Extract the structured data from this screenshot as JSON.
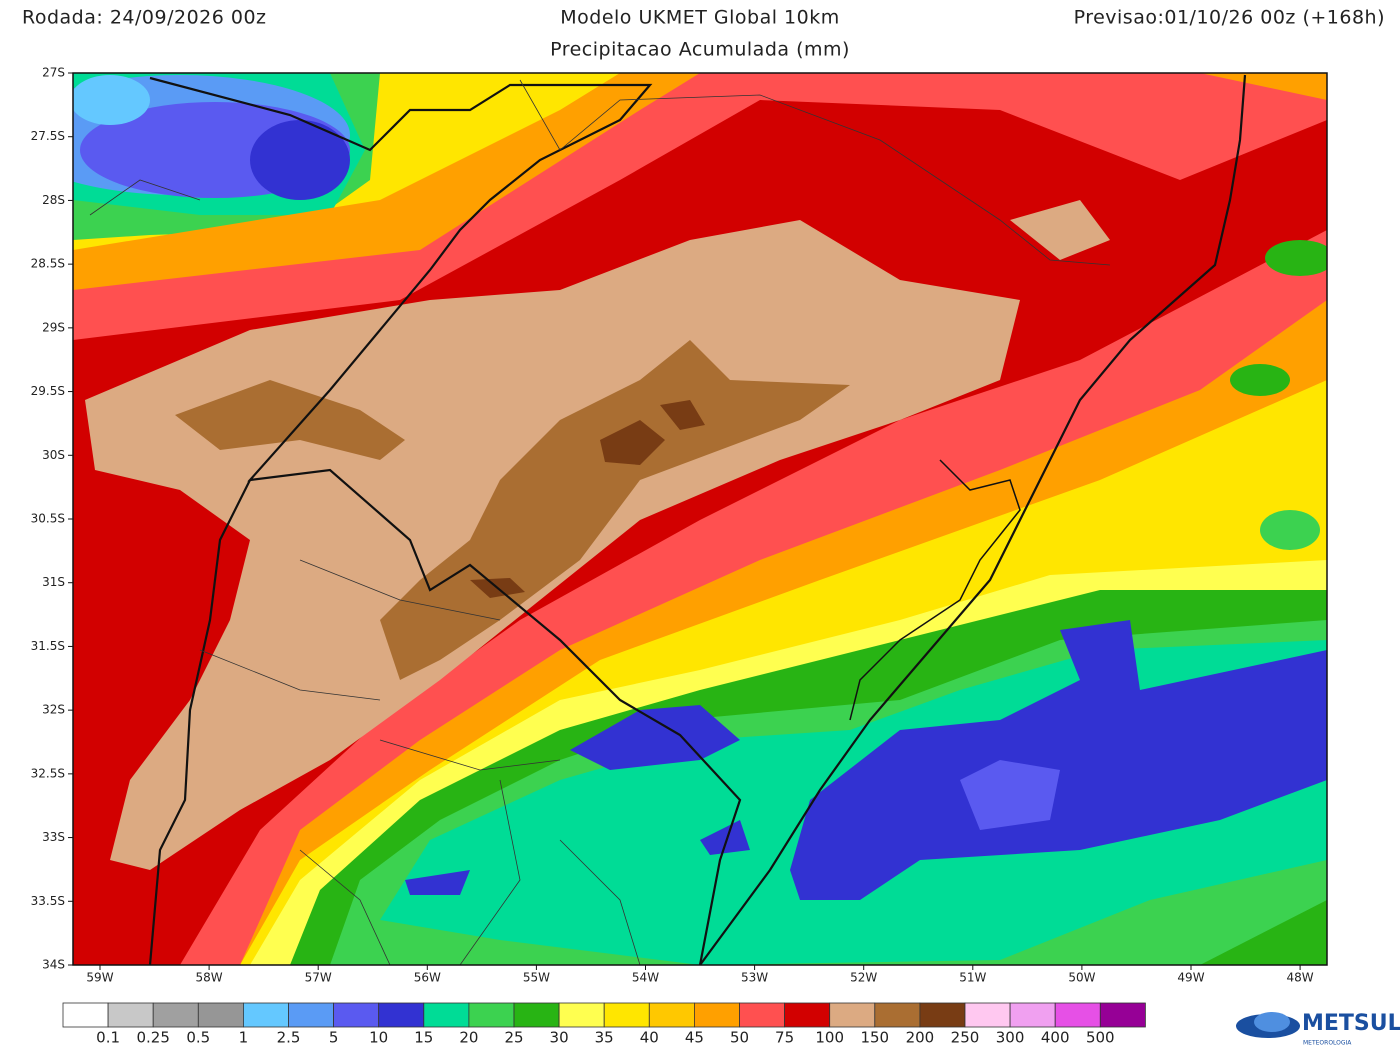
{
  "header": {
    "run": "Rodada: 24/09/2026 00z",
    "model": "Modelo UKMET Global 10km",
    "forecast": "Previsao:01/10/26 00z (+168h)",
    "subtitle": "Precipitacao Acumulada (mm)"
  },
  "map": {
    "lat_ticks": [
      "27S",
      "27.5S",
      "28S",
      "28.5S",
      "29S",
      "29.5S",
      "30S",
      "30.5S",
      "31S",
      "31.5S",
      "32S",
      "32.5S",
      "33S",
      "33.5S",
      "34S"
    ],
    "lon_ticks": [
      "59W",
      "58W",
      "57W",
      "56W",
      "55W",
      "54W",
      "53W",
      "52W",
      "51W",
      "50W",
      "49W",
      "48W"
    ]
  },
  "colorbar": {
    "levels": [
      0.1,
      0.25,
      0.5,
      1,
      2.5,
      5,
      10,
      15,
      20,
      25,
      30,
      35,
      40,
      45,
      50,
      75,
      100,
      150,
      200,
      250,
      300,
      400,
      500
    ],
    "colors": [
      "#ffffff",
      "#c8c8c8",
      "#a0a0a0",
      "#969696",
      "#64c8ff",
      "#5a9bf5",
      "#5a5af0",
      "#3232d2",
      "#00dc96",
      "#3cd250",
      "#28b414",
      "#ffff50",
      "#ffe600",
      "#ffc800",
      "#ffa000",
      "#ff5050",
      "#d20000",
      "#dcaa82",
      "#aa6e32",
      "#783c14",
      "#ffc8f0",
      "#f0a0f0",
      "#e650e6",
      "#960096"
    ]
  },
  "logo": {
    "name": "METSUL",
    "tagline": "METEOROLOGIA"
  }
}
